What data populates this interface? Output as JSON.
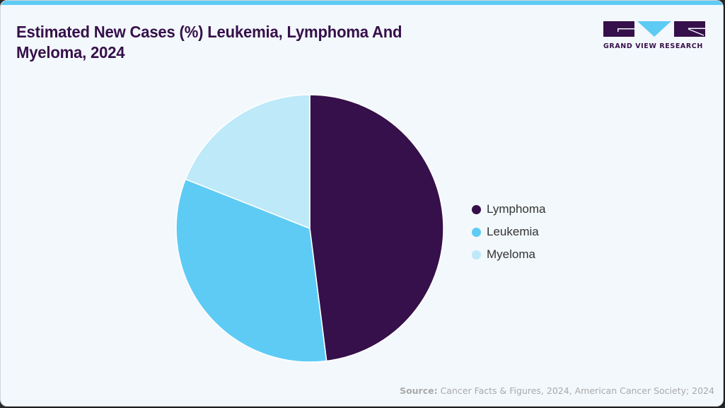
{
  "title": "Estimated New Cases (%) Leukemia, Lymphoma And Myeloma, 2024",
  "logo": {
    "text": "GRAND VIEW RESEARCH",
    "colors": {
      "dark": "#36104a",
      "accent": "#5ecbf5"
    }
  },
  "legend": [
    {
      "label": "Lymphoma",
      "color": "#36104a"
    },
    {
      "label": "Leukemia",
      "color": "#5ecbf5"
    },
    {
      "label": "Myeloma",
      "color": "#bde9f9"
    }
  ],
  "source": {
    "label": "Source:",
    "text": " Cancer Facts & Figures, 2024, American Cancer Society; 2024"
  },
  "colors": {
    "background": "#f3f8fc",
    "top_bar": "#5ecbf5",
    "title": "#36104a"
  },
  "chart_data": {
    "type": "pie",
    "title": "Estimated New Cases (%) Leukemia, Lymphoma And Myeloma, 2024",
    "categories": [
      "Lymphoma",
      "Leukemia",
      "Myeloma"
    ],
    "values": [
      48,
      33,
      19
    ],
    "unit": "%",
    "colors": [
      "#36104a",
      "#5ecbf5",
      "#bde9f9"
    ],
    "start_angle_deg": 0,
    "direction": "clockwise",
    "legend_position": "right",
    "data_labels": false
  }
}
